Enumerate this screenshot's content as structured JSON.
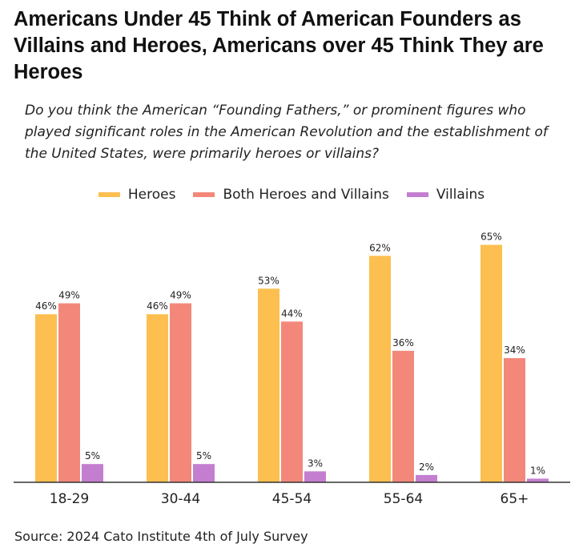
{
  "title": "Americans Under 45 Think of American Founders as Villains and Heroes, Americans over 45 Think They are Heroes",
  "subtitle": "Do you think the American “Founding Fathers,” or prominent figures who played significant roles in the American Revolution and the establishment of the United States, were primarily heroes or villains?",
  "source": "Source: 2024 Cato Institute 4th of July Survey",
  "legend": [
    {
      "label": "Heroes",
      "color": "#FDBF50"
    },
    {
      "label": "Both Heroes and Villains",
      "color": "#F3887A"
    },
    {
      "label": "Villains",
      "color": "#C47ED0"
    }
  ],
  "chart_data": {
    "type": "bar",
    "categories": [
      "18-29",
      "30-44",
      "45-54",
      "55-64",
      "65+"
    ],
    "series": [
      {
        "name": "Heroes",
        "color": "#FDBF50",
        "values": [
          46,
          46,
          53,
          62,
          65
        ]
      },
      {
        "name": "Both Heroes and Villains",
        "color": "#F3887A",
        "values": [
          49,
          49,
          44,
          36,
          34
        ]
      },
      {
        "name": "Villains",
        "color": "#C47ED0",
        "values": [
          5,
          5,
          3,
          2,
          1
        ]
      }
    ],
    "value_suffix": "%",
    "ylim": [
      0,
      70
    ],
    "grid": false,
    "legend_position": "top"
  }
}
